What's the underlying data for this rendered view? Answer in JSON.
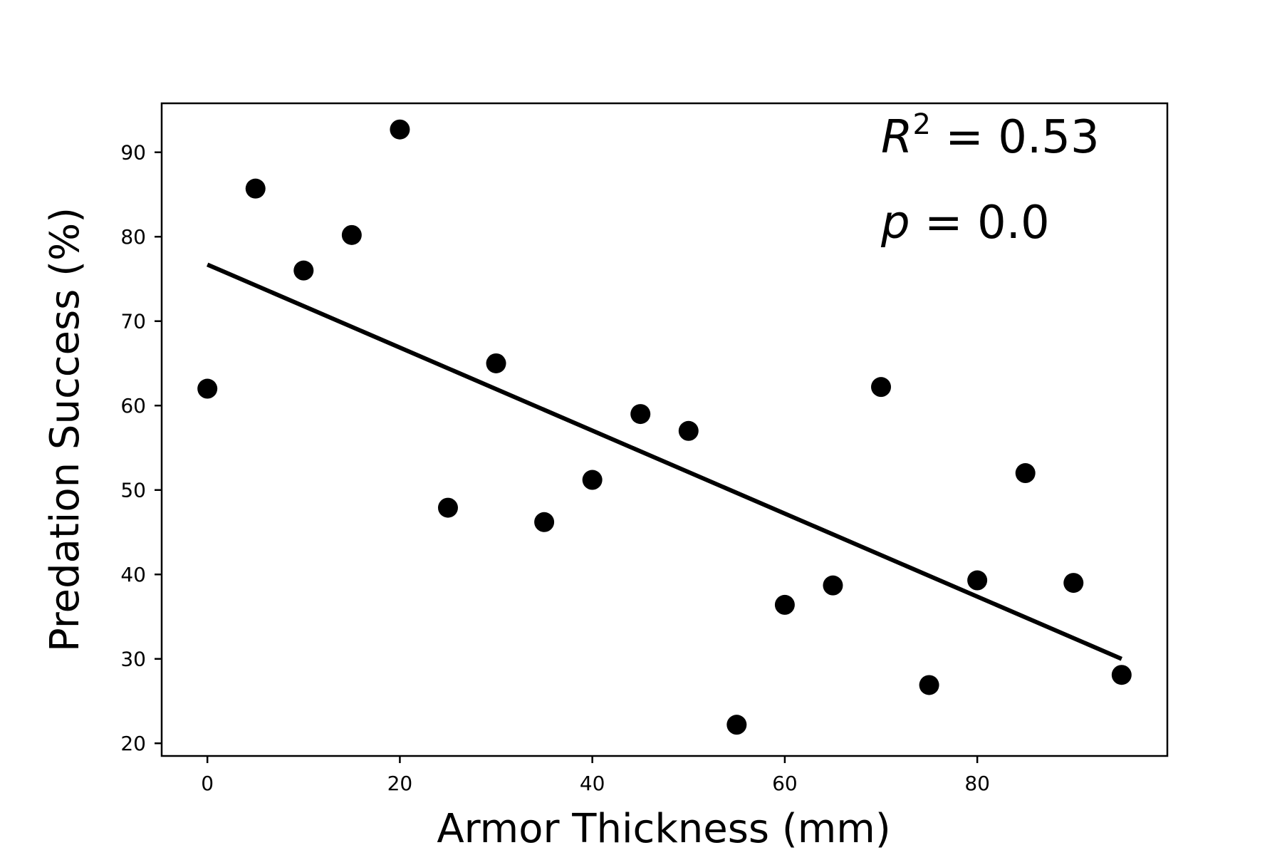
{
  "chart_data": {
    "type": "scatter",
    "xlabel": "Armor Thickness (mm)",
    "ylabel": "Predation Success (%)",
    "xlim": [
      -4.75,
      99.75
    ],
    "ylim": [
      18.5,
      95.8
    ],
    "xticks": [
      0,
      20,
      40,
      60,
      80
    ],
    "yticks": [
      20,
      30,
      40,
      50,
      60,
      70,
      80,
      90
    ],
    "grid": false,
    "legend": "none",
    "points": {
      "x": [
        0,
        5,
        10,
        15,
        20,
        25,
        30,
        35,
        40,
        45,
        50,
        55,
        60,
        65,
        70,
        75,
        80,
        85,
        90,
        95
      ],
      "y": [
        62,
        85.7,
        76,
        80.2,
        92.7,
        47.9,
        65,
        46.2,
        51.2,
        59,
        57,
        22.2,
        36.4,
        38.7,
        62.2,
        26.9,
        39.3,
        52,
        39,
        28.1
      ]
    },
    "fit_line": {
      "x": [
        0,
        95
      ],
      "y": [
        76.7,
        30
      ]
    },
    "annotations": {
      "r2_label": "R",
      "r2_sup": "2",
      "r2_value": " = 0.53",
      "p_label": "p",
      "p_value": " = 0.0"
    },
    "colors": {
      "points": "#000000",
      "fit_line": "#000000",
      "frame": "#000000"
    }
  }
}
